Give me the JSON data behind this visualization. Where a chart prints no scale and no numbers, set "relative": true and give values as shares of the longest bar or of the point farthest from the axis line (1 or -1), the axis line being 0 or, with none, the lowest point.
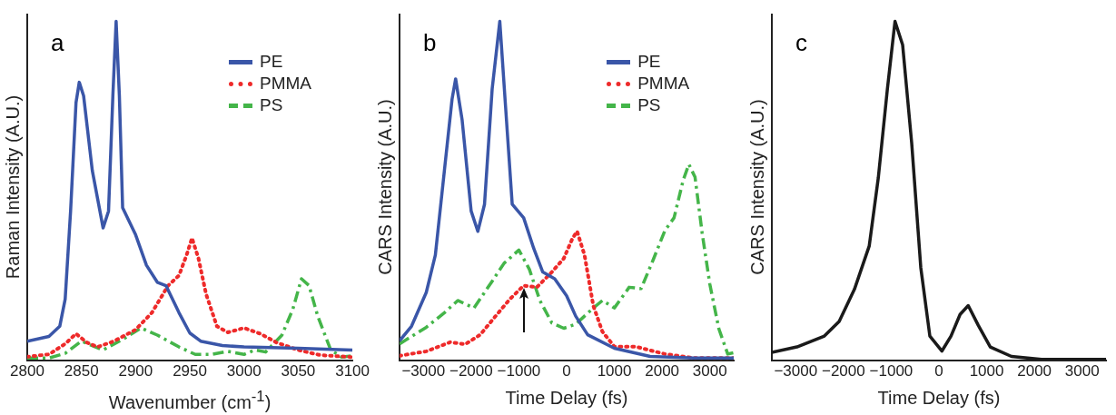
{
  "chart_data": [
    {
      "type": "line",
      "title": "a",
      "xlabel": "Wavenumber (cm$^{-1}$)",
      "ylabel": "Raman Intensity (A.U.)",
      "relative": true,
      "xlim": [
        2800,
        3100
      ],
      "xticks": [
        2800,
        2850,
        2900,
        2950,
        3000,
        3050,
        3100
      ],
      "legend": "top right",
      "grid": false,
      "series": [
        {
          "name": "PE",
          "color": "#3a56a8",
          "line_style": "solid",
          "x": [
            2800,
            2820,
            2830,
            2835,
            2840,
            2845,
            2848,
            2852,
            2860,
            2870,
            2875,
            2879,
            2882,
            2885,
            2888,
            2900,
            2910,
            2920,
            2928,
            2940,
            2950,
            2960,
            2980,
            3000,
            3050,
            3100
          ],
          "values": [
            0.056,
            0.07,
            0.1,
            0.18,
            0.44,
            0.76,
            0.82,
            0.78,
            0.56,
            0.39,
            0.44,
            0.78,
            1.0,
            0.78,
            0.45,
            0.37,
            0.28,
            0.23,
            0.22,
            0.14,
            0.08,
            0.056,
            0.043,
            0.039,
            0.035,
            0.03
          ]
        },
        {
          "name": "PMMA",
          "color": "#ee2a2a",
          "line_style": "dotted",
          "x": [
            2800,
            2820,
            2835,
            2845,
            2855,
            2865,
            2880,
            2900,
            2915,
            2930,
            2940,
            2947,
            2952,
            2958,
            2965,
            2975,
            2985,
            3000,
            3015,
            3030,
            3050,
            3070,
            3100
          ],
          "values": [
            0.01,
            0.017,
            0.048,
            0.078,
            0.052,
            0.039,
            0.056,
            0.09,
            0.14,
            0.22,
            0.25,
            0.31,
            0.36,
            0.3,
            0.195,
            0.1,
            0.082,
            0.095,
            0.078,
            0.052,
            0.03,
            0.015,
            0.009
          ]
        },
        {
          "name": "PS",
          "color": "#44b549",
          "line_style": "dashed",
          "x": [
            2800,
            2820,
            2835,
            2850,
            2870,
            2890,
            2905,
            2920,
            2940,
            2955,
            2970,
            2985,
            3000,
            3010,
            3020,
            3035,
            3045,
            3053,
            3060,
            3068,
            3080,
            3090,
            3100
          ],
          "values": [
            0.006,
            0.006,
            0.02,
            0.056,
            0.03,
            0.065,
            0.095,
            0.074,
            0.039,
            0.017,
            0.017,
            0.026,
            0.017,
            0.03,
            0.024,
            0.074,
            0.15,
            0.24,
            0.22,
            0.13,
            0.03,
            0.009,
            0.013
          ]
        }
      ]
    },
    {
      "type": "line",
      "title": "b",
      "xlabel": "Time Delay (fs)",
      "ylabel": "CARS Intensity (A.U.)",
      "relative": true,
      "xlim": [
        -3500,
        3500
      ],
      "xticks": [
        -3000,
        -2000,
        -1000,
        0,
        1000,
        2000,
        3000
      ],
      "legend": "top right",
      "grid": false,
      "series": [
        {
          "name": "PE",
          "color": "#3a56a8",
          "line_style": "solid",
          "x": [
            -3500,
            -3250,
            -2940,
            -2750,
            -2560,
            -2400,
            -2325,
            -2190,
            -2000,
            -1860,
            -1720,
            -1560,
            -1400,
            -1280,
            -1140,
            -900,
            -690,
            -500,
            -250,
            0,
            190,
            440,
            1000,
            1750,
            2690,
            3500
          ],
          "values": [
            0.057,
            0.1,
            0.2,
            0.31,
            0.56,
            0.77,
            0.83,
            0.71,
            0.44,
            0.38,
            0.46,
            0.8,
            1.0,
            0.75,
            0.46,
            0.42,
            0.33,
            0.26,
            0.24,
            0.19,
            0.13,
            0.075,
            0.035,
            0.011,
            0.006,
            0.006
          ]
        },
        {
          "name": "PMMA",
          "color": "#ee2a2a",
          "line_style": "dotted",
          "x": [
            -3500,
            -2940,
            -2440,
            -2125,
            -1810,
            -1500,
            -1190,
            -900,
            -625,
            -310,
            -60,
            125,
            220,
            375,
            560,
            750,
            1000,
            1440,
            2060,
            2690,
            3500
          ],
          "values": [
            0.013,
            0.026,
            0.053,
            0.047,
            0.075,
            0.128,
            0.18,
            0.22,
            0.215,
            0.26,
            0.3,
            0.36,
            0.38,
            0.31,
            0.16,
            0.084,
            0.04,
            0.04,
            0.018,
            0.006,
            0.006
          ]
        },
        {
          "name": "PS",
          "color": "#44b549",
          "line_style": "dashed",
          "x": [
            -3500,
            -2940,
            -2560,
            -2280,
            -1940,
            -1560,
            -1310,
            -1000,
            -780,
            -560,
            -310,
            -60,
            190,
            560,
            750,
            1000,
            1310,
            1560,
            1810,
            2060,
            2250,
            2440,
            2560,
            2690,
            2840,
            3000,
            3190,
            3375,
            3500
          ],
          "values": [
            0.048,
            0.097,
            0.14,
            0.176,
            0.154,
            0.233,
            0.286,
            0.325,
            0.268,
            0.176,
            0.11,
            0.094,
            0.106,
            0.154,
            0.176,
            0.154,
            0.215,
            0.211,
            0.295,
            0.383,
            0.42,
            0.53,
            0.578,
            0.54,
            0.374,
            0.224,
            0.092,
            0.018,
            0.022
          ]
        }
      ]
    },
    {
      "type": "line",
      "title": "c",
      "xlabel": "Time Delay (fs)",
      "ylabel": "CARS Intensity (A.U.)",
      "relative": true,
      "xlim": [
        -3500,
        3500
      ],
      "xticks": [
        -3000,
        -2000,
        -1000,
        0,
        1000,
        2000,
        3000
      ],
      "grid": false,
      "series": [
        {
          "color": "#1a1a1a",
          "line_style": "solid",
          "x": [
            -3500,
            -2975,
            -2400,
            -2090,
            -1770,
            -1460,
            -1270,
            -1080,
            -920,
            -760,
            -570,
            -380,
            -190,
            63,
            253,
            443,
            614,
            823,
            1076,
            1519,
            2150,
            3400,
            3500
          ],
          "values": [
            0.023,
            0.039,
            0.071,
            0.114,
            0.209,
            0.337,
            0.538,
            0.8,
            1.0,
            0.93,
            0.64,
            0.273,
            0.071,
            0.027,
            0.071,
            0.135,
            0.161,
            0.103,
            0.039,
            0.011,
            0.002,
            0.002,
            0.002
          ]
        }
      ]
    }
  ]
}
